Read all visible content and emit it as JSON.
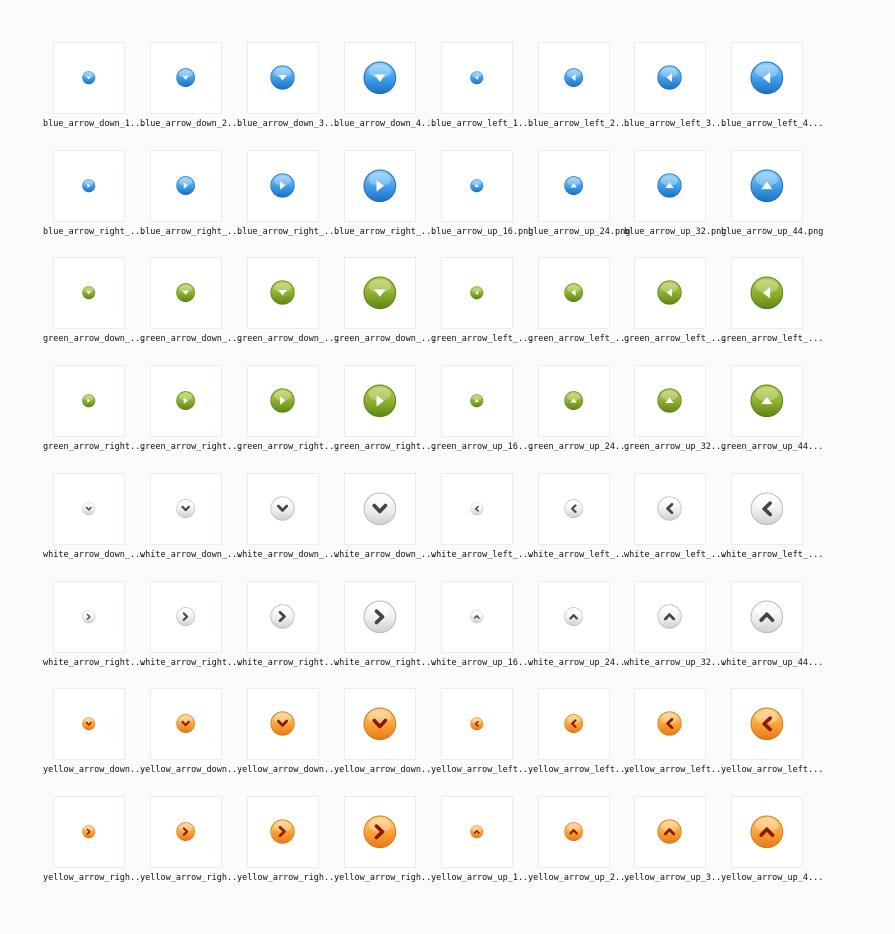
{
  "colors": {
    "blue": {
      "light": "#8fd0fb",
      "mid": "#3f9de6",
      "dark": "#1d6fc4",
      "edge": "#1f6cbf",
      "glyph": "#ffffff"
    },
    "green": {
      "light": "#b8d254",
      "mid": "#8aae2a",
      "dark": "#5e8518",
      "edge": "#5a7e16",
      "glyph": "#ffffff"
    },
    "white": {
      "light": "#ffffff",
      "mid": "#eeeeee",
      "dark": "#cfcfcf",
      "edge": "#b9b9b9",
      "glyph": "#444444"
    },
    "yellow": {
      "light": "#ffd48a",
      "mid": "#f8a133",
      "dark": "#e7791b",
      "edge": "#d2761d",
      "glyph": "#8a1a05"
    }
  },
  "rows": [
    [
      {
        "label": "blue_arrow_down_1...",
        "icon": "blue-arrow-down-icon",
        "color": "blue",
        "dir": "down",
        "size": 16
      },
      {
        "label": "blue_arrow_down_2...",
        "icon": "blue-arrow-down-icon",
        "color": "blue",
        "dir": "down",
        "size": 24
      },
      {
        "label": "blue_arrow_down_3...",
        "icon": "blue-arrow-down-icon",
        "color": "blue",
        "dir": "down",
        "size": 32
      },
      {
        "label": "blue_arrow_down_4...",
        "icon": "blue-arrow-down-icon",
        "color": "blue",
        "dir": "down",
        "size": 44
      },
      {
        "label": "blue_arrow_left_1...",
        "icon": "blue-arrow-left-icon",
        "color": "blue",
        "dir": "left",
        "size": 16
      },
      {
        "label": "blue_arrow_left_2...",
        "icon": "blue-arrow-left-icon",
        "color": "blue",
        "dir": "left",
        "size": 24
      },
      {
        "label": "blue_arrow_left_3...",
        "icon": "blue-arrow-left-icon",
        "color": "blue",
        "dir": "left",
        "size": 32
      },
      {
        "label": "blue_arrow_left_4...",
        "icon": "blue-arrow-left-icon",
        "color": "blue",
        "dir": "left",
        "size": 44
      }
    ],
    [
      {
        "label": "blue_arrow_right_...",
        "icon": "blue-arrow-right-icon",
        "color": "blue",
        "dir": "right",
        "size": 16
      },
      {
        "label": "blue_arrow_right_...",
        "icon": "blue-arrow-right-icon",
        "color": "blue",
        "dir": "right",
        "size": 24
      },
      {
        "label": "blue_arrow_right_...",
        "icon": "blue-arrow-right-icon",
        "color": "blue",
        "dir": "right",
        "size": 32
      },
      {
        "label": "blue_arrow_right_...",
        "icon": "blue-arrow-right-icon",
        "color": "blue",
        "dir": "right",
        "size": 44
      },
      {
        "label": "blue_arrow_up_16.png",
        "icon": "blue-arrow-up-icon",
        "color": "blue",
        "dir": "up",
        "size": 16
      },
      {
        "label": "blue_arrow_up_24.png",
        "icon": "blue-arrow-up-icon",
        "color": "blue",
        "dir": "up",
        "size": 24
      },
      {
        "label": "blue_arrow_up_32.png",
        "icon": "blue-arrow-up-icon",
        "color": "blue",
        "dir": "up",
        "size": 32
      },
      {
        "label": "blue_arrow_up_44.png",
        "icon": "blue-arrow-up-icon",
        "color": "blue",
        "dir": "up",
        "size": 44
      }
    ],
    [
      {
        "label": "green_arrow_down_...",
        "icon": "green-arrow-down-icon",
        "color": "green",
        "dir": "down",
        "size": 16
      },
      {
        "label": "green_arrow_down_...",
        "icon": "green-arrow-down-icon",
        "color": "green",
        "dir": "down",
        "size": 24
      },
      {
        "label": "green_arrow_down_...",
        "icon": "green-arrow-down-icon",
        "color": "green",
        "dir": "down",
        "size": 32
      },
      {
        "label": "green_arrow_down_...",
        "icon": "green-arrow-down-icon",
        "color": "green",
        "dir": "down",
        "size": 44
      },
      {
        "label": "green_arrow_left_...",
        "icon": "green-arrow-left-icon",
        "color": "green",
        "dir": "left",
        "size": 16
      },
      {
        "label": "green_arrow_left_...",
        "icon": "green-arrow-left-icon",
        "color": "green",
        "dir": "left",
        "size": 24
      },
      {
        "label": "green_arrow_left_...",
        "icon": "green-arrow-left-icon",
        "color": "green",
        "dir": "left",
        "size": 32
      },
      {
        "label": "green_arrow_left_...",
        "icon": "green-arrow-left-icon",
        "color": "green",
        "dir": "left",
        "size": 44
      }
    ],
    [
      {
        "label": "green_arrow_right...",
        "icon": "green-arrow-right-icon",
        "color": "green",
        "dir": "right",
        "size": 16
      },
      {
        "label": "green_arrow_right...",
        "icon": "green-arrow-right-icon",
        "color": "green",
        "dir": "right",
        "size": 24
      },
      {
        "label": "green_arrow_right...",
        "icon": "green-arrow-right-icon",
        "color": "green",
        "dir": "right",
        "size": 32
      },
      {
        "label": "green_arrow_right...",
        "icon": "green-arrow-right-icon",
        "color": "green",
        "dir": "right",
        "size": 44
      },
      {
        "label": "green_arrow_up_16...",
        "icon": "green-arrow-up-icon",
        "color": "green",
        "dir": "up",
        "size": 16
      },
      {
        "label": "green_arrow_up_24...",
        "icon": "green-arrow-up-icon",
        "color": "green",
        "dir": "up",
        "size": 24
      },
      {
        "label": "green_arrow_up_32...",
        "icon": "green-arrow-up-icon",
        "color": "green",
        "dir": "up",
        "size": 32
      },
      {
        "label": "green_arrow_up_44...",
        "icon": "green-arrow-up-icon",
        "color": "green",
        "dir": "up",
        "size": 44
      }
    ],
    [
      {
        "label": "white_arrow_down_...",
        "icon": "white-arrow-down-icon",
        "color": "white",
        "dir": "down",
        "size": 16
      },
      {
        "label": "white_arrow_down_...",
        "icon": "white-arrow-down-icon",
        "color": "white",
        "dir": "down",
        "size": 24
      },
      {
        "label": "white_arrow_down_...",
        "icon": "white-arrow-down-icon",
        "color": "white",
        "dir": "down",
        "size": 32
      },
      {
        "label": "white_arrow_down_...",
        "icon": "white-arrow-down-icon",
        "color": "white",
        "dir": "down",
        "size": 44
      },
      {
        "label": "white_arrow_left_...",
        "icon": "white-arrow-left-icon",
        "color": "white",
        "dir": "left",
        "size": 16
      },
      {
        "label": "white_arrow_left_...",
        "icon": "white-arrow-left-icon",
        "color": "white",
        "dir": "left",
        "size": 24
      },
      {
        "label": "white_arrow_left_...",
        "icon": "white-arrow-left-icon",
        "color": "white",
        "dir": "left",
        "size": 32
      },
      {
        "label": "white_arrow_left_...",
        "icon": "white-arrow-left-icon",
        "color": "white",
        "dir": "left",
        "size": 44
      }
    ],
    [
      {
        "label": "white_arrow_right...",
        "icon": "white-arrow-right-icon",
        "color": "white",
        "dir": "right",
        "size": 16
      },
      {
        "label": "white_arrow_right...",
        "icon": "white-arrow-right-icon",
        "color": "white",
        "dir": "right",
        "size": 24
      },
      {
        "label": "white_arrow_right...",
        "icon": "white-arrow-right-icon",
        "color": "white",
        "dir": "right",
        "size": 32
      },
      {
        "label": "white_arrow_right...",
        "icon": "white-arrow-right-icon",
        "color": "white",
        "dir": "right",
        "size": 44
      },
      {
        "label": "white_arrow_up_16...",
        "icon": "white-arrow-up-icon",
        "color": "white",
        "dir": "up",
        "size": 16
      },
      {
        "label": "white_arrow_up_24...",
        "icon": "white-arrow-up-icon",
        "color": "white",
        "dir": "up",
        "size": 24
      },
      {
        "label": "white_arrow_up_32...",
        "icon": "white-arrow-up-icon",
        "color": "white",
        "dir": "up",
        "size": 32
      },
      {
        "label": "white_arrow_up_44...",
        "icon": "white-arrow-up-icon",
        "color": "white",
        "dir": "up",
        "size": 44
      }
    ],
    [
      {
        "label": "yellow_arrow_down...",
        "icon": "yellow-arrow-down-icon",
        "color": "yellow",
        "dir": "down",
        "size": 16
      },
      {
        "label": "yellow_arrow_down...",
        "icon": "yellow-arrow-down-icon",
        "color": "yellow",
        "dir": "down",
        "size": 24
      },
      {
        "label": "yellow_arrow_down...",
        "icon": "yellow-arrow-down-icon",
        "color": "yellow",
        "dir": "down",
        "size": 32
      },
      {
        "label": "yellow_arrow_down...",
        "icon": "yellow-arrow-down-icon",
        "color": "yellow",
        "dir": "down",
        "size": 44
      },
      {
        "label": "yellow_arrow_left...",
        "icon": "yellow-arrow-left-icon",
        "color": "yellow",
        "dir": "left",
        "size": 16
      },
      {
        "label": "yellow_arrow_left...",
        "icon": "yellow-arrow-left-icon",
        "color": "yellow",
        "dir": "left",
        "size": 24
      },
      {
        "label": "yellow_arrow_left...",
        "icon": "yellow-arrow-left-icon",
        "color": "yellow",
        "dir": "left",
        "size": 32
      },
      {
        "label": "yellow_arrow_left...",
        "icon": "yellow-arrow-left-icon",
        "color": "yellow",
        "dir": "left",
        "size": 44
      }
    ],
    [
      {
        "label": "yellow_arrow_righ...",
        "icon": "yellow-arrow-right-icon",
        "color": "yellow",
        "dir": "right",
        "size": 16
      },
      {
        "label": "yellow_arrow_righ...",
        "icon": "yellow-arrow-right-icon",
        "color": "yellow",
        "dir": "right",
        "size": 24
      },
      {
        "label": "yellow_arrow_righ...",
        "icon": "yellow-arrow-right-icon",
        "color": "yellow",
        "dir": "right",
        "size": 32
      },
      {
        "label": "yellow_arrow_righ...",
        "icon": "yellow-arrow-right-icon",
        "color": "yellow",
        "dir": "right",
        "size": 44
      },
      {
        "label": "yellow_arrow_up_1...",
        "icon": "yellow-arrow-up-icon",
        "color": "yellow",
        "dir": "up",
        "size": 16
      },
      {
        "label": "yellow_arrow_up_2...",
        "icon": "yellow-arrow-up-icon",
        "color": "yellow",
        "dir": "up",
        "size": 24
      },
      {
        "label": "yellow_arrow_up_3...",
        "icon": "yellow-arrow-up-icon",
        "color": "yellow",
        "dir": "up",
        "size": 32
      },
      {
        "label": "yellow_arrow_up_4...",
        "icon": "yellow-arrow-up-icon",
        "color": "yellow",
        "dir": "up",
        "size": 44
      }
    ]
  ]
}
